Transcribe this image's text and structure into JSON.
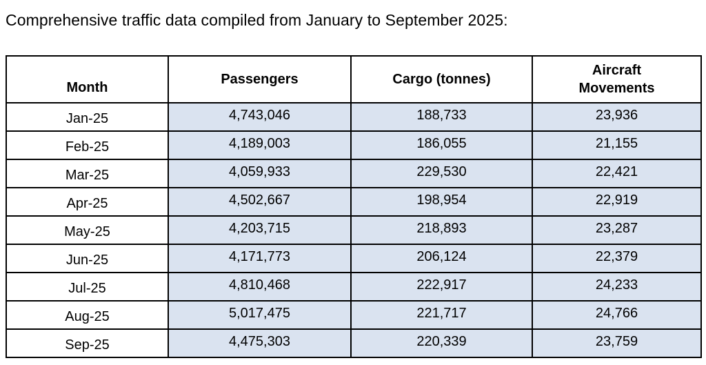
{
  "page": {
    "title": "Comprehensive traffic data compiled from January to September 2025:"
  },
  "table": {
    "columns": {
      "month": "Month",
      "passengers": "Passengers",
      "cargo": "Cargo (tonnes)",
      "aircraft": "Aircraft Movements"
    },
    "colors": {
      "data_cell_fill": "#dae3f0",
      "month_cell_fill": "#ffffff",
      "border": "#000000",
      "text": "#000000"
    },
    "rows": [
      {
        "month": "Jan-25",
        "passengers": "4,743,046",
        "cargo_tonnes": "188,733",
        "aircraft_movements": "23,936"
      },
      {
        "month": "Feb-25",
        "passengers": "4,189,003",
        "cargo_tonnes": "186,055",
        "aircraft_movements": "21,155"
      },
      {
        "month": "Mar-25",
        "passengers": "4,059,933",
        "cargo_tonnes": "229,530",
        "aircraft_movements": "22,421"
      },
      {
        "month": "Apr-25",
        "passengers": "4,502,667",
        "cargo_tonnes": "198,954",
        "aircraft_movements": "22,919"
      },
      {
        "month": "May-25",
        "passengers": "4,203,715",
        "cargo_tonnes": "218,893",
        "aircraft_movements": "23,287"
      },
      {
        "month": "Jun-25",
        "passengers": "4,171,773",
        "cargo_tonnes": "206,124",
        "aircraft_movements": "22,379"
      },
      {
        "month": "Jul-25",
        "passengers": "4,810,468",
        "cargo_tonnes": "222,917",
        "aircraft_movements": "24,233"
      },
      {
        "month": "Aug-25",
        "passengers": "5,017,475",
        "cargo_tonnes": "221,717",
        "aircraft_movements": "24,766"
      },
      {
        "month": "Sep-25",
        "passengers": "4,475,303",
        "cargo_tonnes": "220,339",
        "aircraft_movements": "23,759"
      }
    ]
  }
}
